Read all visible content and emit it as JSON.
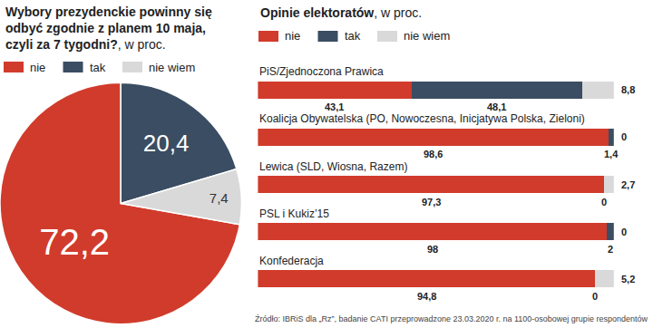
{
  "chart_data": [
    {
      "type": "pie",
      "title": "Wybory prezydenckie powinny się odbyć zgodnie z planem 10 maja, czyli za 7 tygodni?",
      "subtitle": ", w proc.",
      "categories": [
        "nie",
        "tak",
        "nie wiem"
      ],
      "values": [
        72.2,
        20.4,
        7.4
      ],
      "value_labels": [
        "72,2",
        "20,4",
        "7,4"
      ],
      "colors": [
        "#d13b2b",
        "#3a4d62",
        "#d9d9d9"
      ],
      "data_labels": true,
      "legend": "top left"
    },
    {
      "type": "bar",
      "orientation": "horizontal",
      "stacked": true,
      "title": "Opinie elektoratów",
      "subtitle": ", w proc.",
      "categories": [
        "PiS/Zjednoczona Prawica",
        "Koalicja Obywatelska (PO, Nowoczesna, Inicjatywa Polska, Zieloni)",
        "Lewica (SLD, Wiosna, Razem)",
        "PSL i Kukiz’15",
        "Konfederacja"
      ],
      "series": [
        {
          "name": "nie",
          "color": "#d13b2b",
          "values": [
            43.1,
            98.6,
            97.3,
            98,
            94.8
          ],
          "value_labels": [
            "43,1",
            "98,6",
            "97,3",
            "98",
            "94,8"
          ]
        },
        {
          "name": "tak",
          "color": "#3a4d62",
          "values": [
            48.1,
            1.4,
            0,
            2,
            0
          ],
          "value_labels": [
            "48,1",
            "1,4",
            "0",
            "2",
            "0"
          ]
        },
        {
          "name": "nie wiem",
          "color": "#d9d9d9",
          "values": [
            8.8,
            0,
            2.7,
            0,
            5.2
          ],
          "value_labels": [
            "8,8",
            "0",
            "2,7",
            "0",
            "5,2"
          ]
        }
      ],
      "xlim": [
        0,
        100
      ],
      "data_labels": true,
      "tick_labels": false,
      "legend": "top left",
      "annotations": [
        "Źródło: IBRiS dla „Rz”, badanie CATI przeprowadzone 23.03.2020 r. na 1100-osobowej grupie respondentów"
      ]
    }
  ]
}
